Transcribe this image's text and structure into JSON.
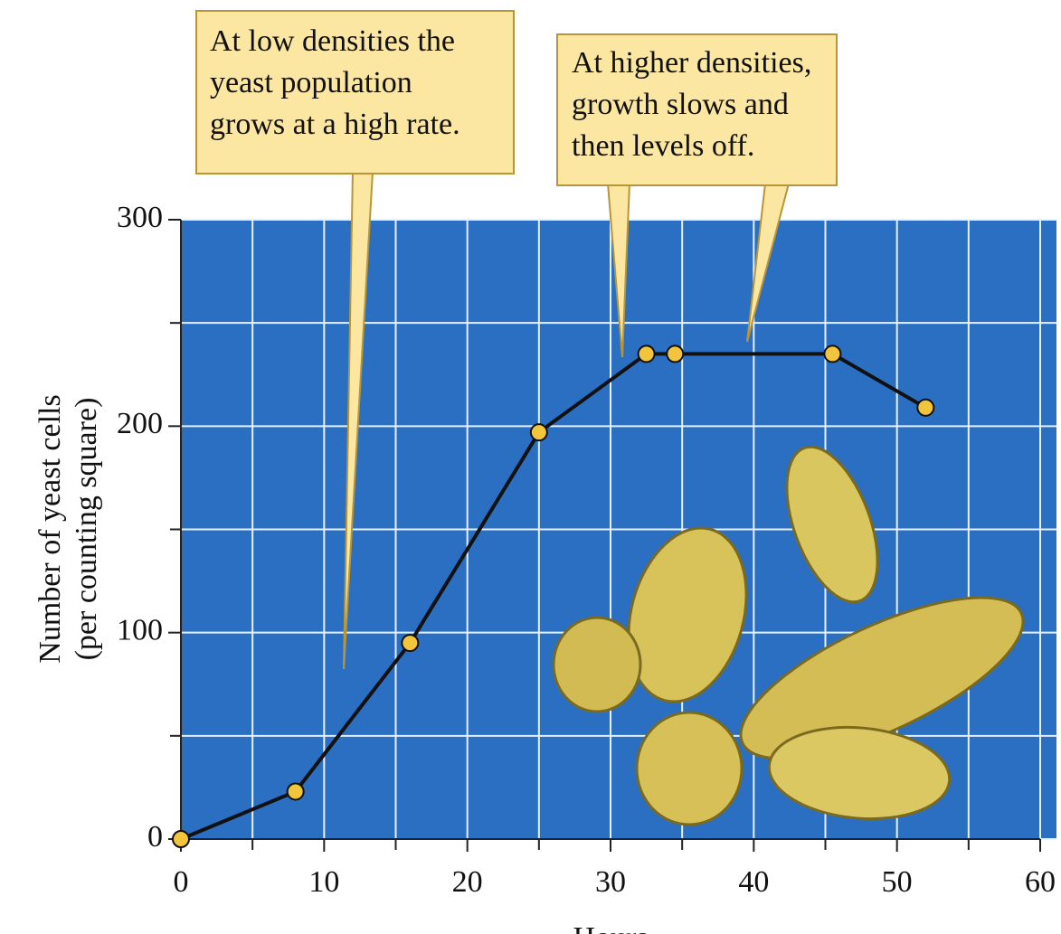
{
  "chart_data": {
    "type": "line",
    "x_label": "Hours",
    "y_label": [
      "Number of yeast cells",
      "(per counting square)"
    ],
    "annotations": [
      {
        "text": [
          "At low densities the",
          "yeast population",
          "grows at a high rate."
        ]
      },
      {
        "text": [
          "At higher densities,",
          "growth slows and",
          "then levels off."
        ]
      }
    ],
    "x": [
      0,
      8,
      16,
      25,
      32.5,
      34.5,
      45.5,
      52
    ],
    "series": [
      {
        "color": "#f2c53d",
        "values": [
          0,
          23,
          95,
          197,
          235,
          235,
          235,
          209
        ]
      }
    ],
    "xlim": [
      0,
      60
    ],
    "ylim": [
      0,
      300
    ],
    "xticks": [
      0,
      10,
      20,
      30,
      40,
      50,
      60
    ],
    "yticks": [
      0,
      100,
      200,
      300
    ],
    "xminorticks": [
      5,
      15,
      25,
      35,
      45,
      55
    ],
    "yminorticks": [
      50,
      150,
      250
    ],
    "grid": true,
    "background": "#2b6fc2"
  }
}
